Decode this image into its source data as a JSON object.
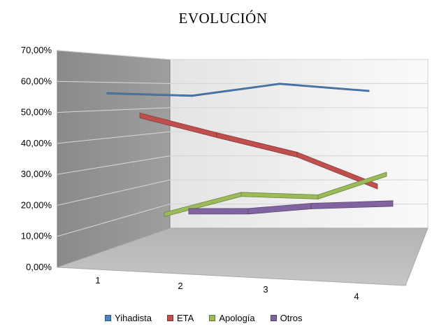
{
  "chart_data": {
    "type": "line",
    "title": "EVOLUCIÓN",
    "categories": [
      "1",
      "2",
      "3",
      "4"
    ],
    "y_ticks": [
      "0,00%",
      "10,00%",
      "20,00%",
      "30,00%",
      "40,00%",
      "50,00%",
      "60,00%",
      "70,00%"
    ],
    "ylim": [
      0,
      70
    ],
    "grid": true,
    "legend_position": "bottom",
    "series": [
      {
        "name": "Yihadista",
        "values": [
          54,
          53,
          58,
          55
        ],
        "color": "#4f81bd"
      },
      {
        "name": "ETA",
        "values": [
          47,
          39,
          31,
          18
        ],
        "color": "#c0504d"
      },
      {
        "name": "Apología",
        "values": [
          9,
          17,
          16,
          25
        ],
        "color": "#9bbb59"
      },
      {
        "name": "Otros",
        "values": [
          13,
          13,
          15,
          16
        ],
        "color": "#8064a2"
      }
    ]
  }
}
